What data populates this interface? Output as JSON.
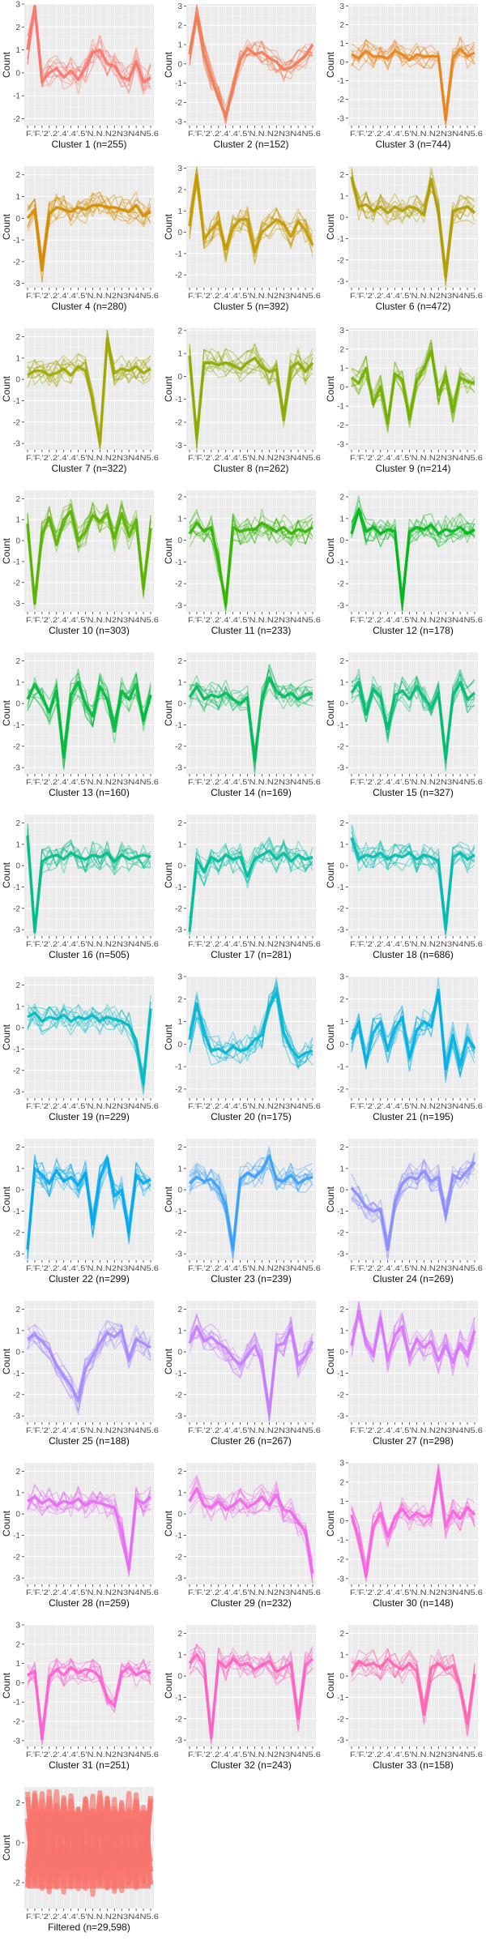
{
  "chart_data": {
    "type": "line",
    "ylabel": "Count",
    "x_tick_labels": [
      "F",
      "F",
      "2",
      "2",
      "4",
      "5",
      "5",
      "N",
      "N",
      "N",
      "2",
      "3",
      "N",
      "A",
      "S",
      "4",
      "5",
      "6"
    ],
    "x_tick_display": "F.'F.'2'.2'.4'.4'.5'N.N.N2N3N4N5.6",
    "panels": [
      {
        "title": "Cluster 1 (n=255)",
        "color": "#F8766D",
        "ylim": [
          -2.3,
          3.0
        ],
        "yticks": [
          -2,
          -1,
          0,
          1,
          2,
          3
        ],
        "profile": [
          1.0,
          2.9,
          -0.4,
          0.0,
          0.2,
          -0.2,
          0.1,
          -0.3,
          0.2,
          0.9,
          1.0,
          0.4,
          0.3,
          -0.2,
          -0.3,
          0.5,
          -0.4,
          -0.2
        ]
      },
      {
        "title": "Cluster 2 (n=152)",
        "color": "#F07B54",
        "ylim": [
          -3.2,
          3.1
        ],
        "yticks": [
          -3,
          -2,
          -1,
          0,
          1,
          2,
          3
        ],
        "profile": [
          0.5,
          2.6,
          0.5,
          -0.7,
          -1.8,
          -2.7,
          -1.2,
          0.2,
          0.8,
          0.5,
          0.6,
          0.3,
          0.1,
          -0.3,
          -0.2,
          0.1,
          0.4,
          1.0
        ]
      },
      {
        "title": "Cluster 3 (n=744)",
        "color": "#E8841E",
        "ylim": [
          -3.4,
          3.1
        ],
        "yticks": [
          -3,
          -2,
          -1,
          0,
          1,
          2,
          3
        ],
        "profile": [
          0.4,
          0.2,
          0.6,
          0.3,
          0.3,
          0.2,
          0.6,
          0.4,
          0.1,
          0.4,
          0.3,
          0.3,
          0.3,
          -3.1,
          0.2,
          0.7,
          0.3,
          0.5
        ]
      },
      {
        "title": "Cluster 4 (n=280)",
        "color": "#D58B00",
        "ylim": [
          -3.2,
          2.4
        ],
        "yticks": [
          -3,
          -2,
          -1,
          0,
          1,
          2
        ],
        "profile": [
          0.0,
          0.4,
          -2.4,
          0.2,
          0.5,
          0.4,
          0.3,
          0.5,
          0.4,
          0.6,
          0.6,
          0.5,
          0.5,
          0.4,
          0.3,
          0.6,
          0.1,
          0.3
        ]
      },
      {
        "title": "Cluster 5 (n=392)",
        "color": "#C49A00",
        "ylim": [
          -2.6,
          3.1
        ],
        "yticks": [
          -2,
          -1,
          0,
          1,
          2,
          3
        ],
        "profile": [
          0.3,
          2.7,
          -0.3,
          0.1,
          0.5,
          -0.8,
          0.2,
          0.6,
          0.6,
          -0.9,
          0.0,
          0.3,
          0.6,
          0.4,
          -0.2,
          0.5,
          0.1,
          -0.6
        ]
      },
      {
        "title": "Cluster 6 (n=472)",
        "color": "#B19C00",
        "ylim": [
          -3.3,
          2.4
        ],
        "yticks": [
          -3,
          -2,
          -1,
          0,
          1,
          2
        ],
        "profile": [
          1.9,
          0.5,
          0.6,
          0.3,
          0.5,
          0.2,
          0.5,
          0.3,
          0.5,
          0.4,
          0.1,
          1.8,
          0.2,
          -2.8,
          0.3,
          0.4,
          0.5,
          0.2
        ]
      },
      {
        "title": "Cluster 7 (n=322)",
        "color": "#9EA700",
        "ylim": [
          -3.3,
          2.4
        ],
        "yticks": [
          -3,
          -2,
          -1,
          0,
          1,
          2
        ],
        "profile": [
          0.2,
          0.4,
          0.4,
          0.2,
          0.3,
          0.5,
          0.2,
          0.6,
          0.4,
          -1.0,
          -3.0,
          1.9,
          0.3,
          0.5,
          0.4,
          0.6,
          0.3,
          0.5
        ]
      },
      {
        "title": "Cluster 8 (n=262)",
        "color": "#8AAB00",
        "ylim": [
          -3.2,
          2.1
        ],
        "yticks": [
          -3,
          -2,
          -1,
          0,
          1,
          2
        ],
        "profile": [
          0.9,
          -2.7,
          0.6,
          0.6,
          0.5,
          0.6,
          0.5,
          0.3,
          0.6,
          0.8,
          0.4,
          0.2,
          0.3,
          -1.9,
          0.4,
          0.6,
          0.2,
          0.6
        ]
      },
      {
        "title": "Cluster 9 (n=214)",
        "color": "#72AF00",
        "ylim": [
          -3.3,
          3.1
        ],
        "yticks": [
          -3,
          -2,
          -1,
          0,
          1,
          2,
          3
        ],
        "profile": [
          0.5,
          0.2,
          1.0,
          -0.9,
          0.0,
          -1.9,
          0.7,
          0.4,
          -1.7,
          0.3,
          1.0,
          1.9,
          -0.4,
          0.6,
          -1.3,
          0.5,
          0.3,
          0.2
        ]
      },
      {
        "title": "Cluster 10 (n=303)",
        "color": "#5AB200",
        "ylim": [
          -3.4,
          2.4
        ],
        "yticks": [
          -3,
          -2,
          -1,
          0,
          1,
          2
        ],
        "profile": [
          0.8,
          -3.0,
          0.3,
          1.1,
          -0.2,
          1.0,
          1.4,
          0.0,
          0.4,
          1.2,
          0.9,
          1.3,
          0.1,
          1.3,
          0.2,
          1.0,
          -2.3,
          0.6
        ]
      },
      {
        "title": "Cluster 11 (n=233)",
        "color": "#31B500",
        "ylim": [
          -3.3,
          2.3
        ],
        "yticks": [
          -3,
          -2,
          -1,
          0,
          1,
          2
        ],
        "profile": [
          0.3,
          0.8,
          0.4,
          0.6,
          -1.0,
          -3.0,
          0.6,
          0.4,
          0.5,
          0.5,
          0.8,
          0.6,
          0.4,
          0.6,
          0.3,
          0.5,
          0.4,
          0.6
        ]
      },
      {
        "title": "Cluster 12 (n=178)",
        "color": "#00B81B",
        "ylim": [
          -3.3,
          2.3
        ],
        "yticks": [
          -3,
          -2,
          -1,
          0,
          1,
          2
        ],
        "profile": [
          0.3,
          1.4,
          0.4,
          0.6,
          0.3,
          0.5,
          0.4,
          -2.9,
          0.4,
          0.6,
          0.5,
          0.7,
          0.3,
          0.5,
          0.4,
          0.6,
          0.3,
          0.5
        ]
      },
      {
        "title": "Cluster 13 (n=160)",
        "color": "#00BA3C",
        "ylim": [
          -3.3,
          2.4
        ],
        "yticks": [
          -3,
          -2,
          -1,
          0,
          1,
          2
        ],
        "profile": [
          0.2,
          0.9,
          0.3,
          -0.4,
          0.6,
          -2.5,
          0.4,
          1.0,
          0.0,
          -0.6,
          0.8,
          0.2,
          -1.3,
          0.6,
          0.2,
          0.9,
          -0.8,
          0.4
        ]
      },
      {
        "title": "Cluster 14 (n=169)",
        "color": "#00BB59",
        "ylim": [
          -3.3,
          2.4
        ],
        "yticks": [
          -3,
          -2,
          -1,
          0,
          1,
          2
        ],
        "profile": [
          0.3,
          0.8,
          0.2,
          0.4,
          0.3,
          0.5,
          0.2,
          0.0,
          0.3,
          -2.7,
          0.2,
          1.2,
          0.6,
          0.3,
          0.5,
          0.2,
          0.4,
          0.5
        ]
      },
      {
        "title": "Cluster 15 (n=327)",
        "color": "#00BC72",
        "ylim": [
          -3.3,
          2.4
        ],
        "yticks": [
          -3,
          -2,
          -1,
          0,
          1,
          2
        ],
        "profile": [
          0.5,
          1.0,
          -0.5,
          0.7,
          0.3,
          -1.2,
          0.4,
          0.6,
          0.2,
          0.8,
          0.3,
          -0.2,
          0.5,
          -2.6,
          0.4,
          1.0,
          0.2,
          0.5
        ]
      },
      {
        "title": "Cluster 16 (n=505)",
        "color": "#00BD89",
        "ylim": [
          -3.3,
          2.4
        ],
        "yticks": [
          -3,
          -2,
          -1,
          0,
          1,
          2
        ],
        "profile": [
          1.4,
          -3.1,
          0.2,
          0.4,
          0.5,
          0.3,
          0.6,
          0.4,
          0.3,
          0.5,
          0.4,
          0.6,
          0.2,
          0.5,
          0.3,
          0.4,
          0.5,
          0.4
        ]
      },
      {
        "title": "Cluster 17 (n=281)",
        "color": "#00BE9D",
        "ylim": [
          -3.3,
          2.4
        ],
        "yticks": [
          -3,
          -2,
          -1,
          0,
          1,
          2
        ],
        "profile": [
          -3.1,
          0.3,
          -0.3,
          0.4,
          0.2,
          0.5,
          0.3,
          0.4,
          -0.5,
          0.3,
          0.5,
          0.7,
          0.3,
          0.6,
          0.2,
          0.5,
          0.3,
          0.4
        ]
      },
      {
        "title": "Cluster 18 (n=686)",
        "color": "#00BCB1",
        "ylim": [
          -3.3,
          2.4
        ],
        "yticks": [
          -3,
          -2,
          -1,
          0,
          1,
          2
        ],
        "profile": [
          1.3,
          0.3,
          0.5,
          0.4,
          0.6,
          0.3,
          0.5,
          0.4,
          0.6,
          0.3,
          0.5,
          0.4,
          0.2,
          -3.0,
          0.4,
          0.6,
          0.3,
          0.5
        ]
      },
      {
        "title": "Cluster 19 (n=229)",
        "color": "#00BAC4",
        "ylim": [
          -3.3,
          2.4
        ],
        "yticks": [
          -3,
          -2,
          -1,
          0,
          1,
          2
        ],
        "profile": [
          0.5,
          0.7,
          0.3,
          0.5,
          0.4,
          0.6,
          0.3,
          0.5,
          0.4,
          0.6,
          0.3,
          0.5,
          0.4,
          0.3,
          0.1,
          -0.6,
          -2.6,
          0.9
        ]
      },
      {
        "title": "Cluster 20 (n=175)",
        "color": "#00B5D4",
        "ylim": [
          -2.4,
          3.0
        ],
        "yticks": [
          -2,
          -1,
          0,
          1,
          2,
          3
        ],
        "profile": [
          0.2,
          1.8,
          0.5,
          -0.3,
          -0.2,
          -0.4,
          -0.1,
          -0.3,
          -0.2,
          0.2,
          0.4,
          1.6,
          2.3,
          0.5,
          -0.2,
          -0.6,
          -0.4,
          -0.3
        ]
      },
      {
        "title": "Cluster 21 (n=195)",
        "color": "#00B0E3",
        "ylim": [
          -2.4,
          3.0
        ],
        "yticks": [
          -2,
          -1,
          0,
          1,
          2,
          3
        ],
        "profile": [
          0.2,
          1.0,
          -0.8,
          0.5,
          1.0,
          -0.3,
          0.7,
          1.2,
          -0.6,
          0.6,
          1.0,
          0.8,
          2.4,
          -1.1,
          0.4,
          -0.9,
          0.3,
          -0.2
        ]
      },
      {
        "title": "Cluster 22 (n=299)",
        "color": "#00A8F0",
        "ylim": [
          -3.3,
          2.4
        ],
        "yticks": [
          -3,
          -2,
          -1,
          0,
          1,
          2
        ],
        "profile": [
          -2.8,
          1.0,
          0.7,
          0.3,
          0.9,
          0.4,
          0.6,
          0.2,
          0.8,
          -1.6,
          0.5,
          1.5,
          -0.3,
          0.0,
          -2.0,
          0.7,
          0.3,
          0.5
        ]
      },
      {
        "title": "Cluster 23 (n=239)",
        "color": "#39A0FB",
        "ylim": [
          -3.3,
          2.4
        ],
        "yticks": [
          -3,
          -2,
          -1,
          0,
          1,
          2
        ],
        "profile": [
          0.3,
          0.6,
          0.4,
          0.5,
          0.1,
          -0.7,
          -2.8,
          0.5,
          0.8,
          0.6,
          0.9,
          1.6,
          0.5,
          0.4,
          0.7,
          0.3,
          0.5,
          0.6
        ]
      },
      {
        "title": "Cluster 24 (n=269)",
        "color": "#8C8CFF",
        "ylim": [
          -3.3,
          2.4
        ],
        "yticks": [
          -3,
          -2,
          -1,
          0,
          1,
          2
        ],
        "profile": [
          0.1,
          -0.3,
          -0.8,
          -1.0,
          -0.9,
          -2.8,
          -0.6,
          0.3,
          0.6,
          0.5,
          0.9,
          0.4,
          0.6,
          -1.2,
          0.7,
          0.5,
          0.9,
          1.3
        ]
      },
      {
        "title": "Cluster 25 (n=188)",
        "color": "#A58AFF",
        "ylim": [
          -3.3,
          2.4
        ],
        "yticks": [
          -3,
          -2,
          -1,
          0,
          1,
          2
        ],
        "profile": [
          0.6,
          0.8,
          0.5,
          0.1,
          -0.6,
          -1.1,
          -1.6,
          -2.3,
          -0.8,
          -0.2,
          0.4,
          0.9,
          0.7,
          1.0,
          -0.3,
          0.6,
          0.4,
          0.2
        ]
      },
      {
        "title": "Cluster 26 (n=267)",
        "color": "#C77CFF",
        "ylim": [
          -3.3,
          2.4
        ],
        "yticks": [
          -3,
          -2,
          -1,
          0,
          1,
          2
        ],
        "profile": [
          0.4,
          1.2,
          0.5,
          0.7,
          0.4,
          0.2,
          -0.3,
          -0.6,
          -0.2,
          0.3,
          -0.5,
          -2.9,
          0.3,
          0.4,
          1.1,
          -0.6,
          -0.2,
          0.5
        ]
      },
      {
        "title": "Cluster 27 (n=298)",
        "color": "#D874FD",
        "ylim": [
          -3.3,
          2.4
        ],
        "yticks": [
          -3,
          -2,
          -1,
          0,
          1,
          2
        ],
        "profile": [
          0.3,
          1.9,
          0.4,
          -0.2,
          1.6,
          -0.4,
          0.8,
          1.2,
          -0.2,
          0.6,
          0.2,
          0.5,
          -0.4,
          0.3,
          -0.5,
          0.4,
          -0.1,
          1.0
        ]
      },
      {
        "title": "Cluster 28 (n=259)",
        "color": "#E76BF3",
        "ylim": [
          -3.3,
          2.4
        ],
        "yticks": [
          -3,
          -2,
          -1,
          0,
          1,
          2
        ],
        "profile": [
          0.6,
          0.8,
          0.5,
          0.7,
          0.4,
          0.6,
          0.5,
          0.7,
          0.4,
          0.6,
          0.5,
          0.4,
          0.3,
          -0.8,
          -2.6,
          0.7,
          0.5,
          0.8
        ]
      },
      {
        "title": "Cluster 29 (n=232)",
        "color": "#F066EA",
        "ylim": [
          -3.3,
          2.4
        ],
        "yticks": [
          -3,
          -2,
          -1,
          0,
          1,
          2
        ],
        "profile": [
          0.6,
          1.2,
          0.4,
          0.3,
          0.6,
          0.2,
          0.4,
          0.7,
          0.3,
          0.5,
          0.8,
          0.4,
          0.9,
          0.2,
          0.1,
          -0.4,
          -0.8,
          -2.8
        ]
      },
      {
        "title": "Cluster 30 (n=148)",
        "color": "#F863DF",
        "ylim": [
          -3.3,
          3.0
        ],
        "yticks": [
          -3,
          -2,
          -1,
          0,
          1,
          2,
          3
        ],
        "profile": [
          0.3,
          -0.9,
          -2.9,
          -0.3,
          0.4,
          -0.8,
          0.2,
          0.6,
          0.1,
          0.4,
          0.2,
          0.3,
          2.5,
          -0.3,
          0.5,
          0.1,
          0.7,
          0.3
        ]
      },
      {
        "title": "Cluster 31 (n=251)",
        "color": "#FD61D1",
        "ylim": [
          -3.3,
          3.0
        ],
        "yticks": [
          -3,
          -2,
          -1,
          0,
          1,
          2,
          3
        ],
        "profile": [
          0.4,
          0.6,
          -2.9,
          0.3,
          0.7,
          0.4,
          0.8,
          0.5,
          0.7,
          0.6,
          0.3,
          -0.8,
          -1.2,
          0.5,
          0.8,
          0.4,
          0.6,
          0.5
        ]
      },
      {
        "title": "Cluster 32 (n=243)",
        "color": "#FF61C3",
        "ylim": [
          -3.3,
          2.4
        ],
        "yticks": [
          -3,
          -2,
          -1,
          0,
          1,
          2
        ],
        "profile": [
          0.6,
          1.0,
          0.5,
          -2.9,
          0.7,
          0.4,
          0.8,
          0.5,
          0.6,
          0.3,
          0.5,
          0.7,
          0.2,
          0.4,
          0.6,
          -2.0,
          0.5,
          0.8
        ]
      },
      {
        "title": "Cluster 33 (n=158)",
        "color": "#FF64B0",
        "ylim": [
          -3.3,
          2.4
        ],
        "yticks": [
          -3,
          -2,
          -1,
          0,
          1,
          2
        ],
        "profile": [
          0.2,
          0.7,
          0.5,
          0.6,
          0.4,
          0.8,
          0.5,
          0.3,
          0.6,
          0.2,
          -1.8,
          0.4,
          0.6,
          0.3,
          0.5,
          -0.5,
          -2.2,
          0.1
        ]
      },
      {
        "title": "Filtered (n=29,598)",
        "color": "#F8766D",
        "ylim": [
          -3.3,
          2.8
        ],
        "yticks": [
          -2,
          0,
          2
        ],
        "profile": [
          0.0,
          0.0,
          0.0,
          0.0,
          0.0,
          0.0,
          0.0,
          0.0,
          0.0,
          0.0,
          0.0,
          0.0,
          0.0,
          0.0,
          0.0,
          0.0,
          0.0,
          0.0
        ]
      }
    ],
    "background": "#EBEBEB",
    "grid": true,
    "legend": "none"
  }
}
